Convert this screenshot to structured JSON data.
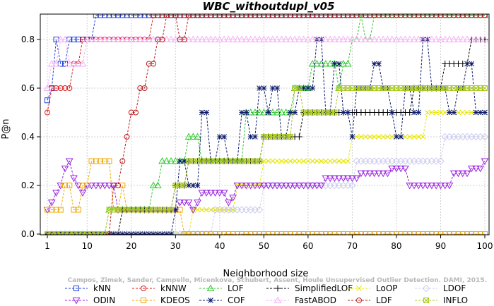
{
  "chart_data": {
    "type": "line",
    "title": "WBC_withoutdupl_v05",
    "xlabel": "Neighborhood size",
    "ylabel": "P@n",
    "xlim": [
      1,
      100
    ],
    "ylim": [
      0.0,
      0.9
    ],
    "xticks": [
      1,
      10,
      20,
      30,
      40,
      50,
      60,
      70,
      80,
      90,
      100
    ],
    "yticks": [
      0.0,
      0.2,
      0.4,
      0.6,
      0.8
    ],
    "ytick_labels": [
      "0.0",
      "0.2",
      "0.4",
      "0.6",
      "0.8"
    ],
    "grid": true,
    "legend_position": "bottom",
    "credit": "Campos, Zimek, Sander, Campello, Micenkova, Schubert, Assent, Houle  Unsupervised Outlier Detection. DAMI, 2015.",
    "series": [
      {
        "name": "kNN",
        "color": "#1f3fe0",
        "marker": "square",
        "points": [
          [
            1,
            0.55
          ],
          [
            2,
            0.6
          ],
          [
            3,
            0.8
          ],
          [
            4,
            0.7
          ],
          [
            5,
            0.7
          ],
          [
            6,
            0.8
          ],
          [
            8,
            0.8
          ],
          [
            11,
            0.8
          ],
          [
            12,
            0.9
          ],
          [
            100,
            0.9
          ]
        ]
      },
      {
        "name": "kNNW",
        "color": "#d81f1f",
        "marker": "circle",
        "points": [
          [
            1,
            0.5
          ],
          [
            2,
            0.6
          ],
          [
            3,
            0.6
          ],
          [
            6,
            0.6
          ],
          [
            7,
            0.7
          ],
          [
            8,
            0.7
          ],
          [
            9,
            0.8
          ],
          [
            24,
            0.8
          ],
          [
            25,
            0.9
          ],
          [
            100,
            0.9
          ]
        ]
      },
      {
        "name": "LOF",
        "color": "#2ec82e",
        "marker": "triangle-up",
        "points": [
          [
            1,
            0.0
          ],
          [
            14,
            0.0
          ],
          [
            15,
            0.1
          ],
          [
            24,
            0.1
          ],
          [
            25,
            0.2
          ],
          [
            27,
            0.3
          ],
          [
            32,
            0.3
          ],
          [
            33,
            0.4
          ],
          [
            35,
            0.4
          ],
          [
            36,
            0.3
          ],
          [
            44,
            0.3
          ],
          [
            46,
            0.5
          ],
          [
            56,
            0.5
          ],
          [
            57,
            0.6
          ],
          [
            60,
            0.6
          ],
          [
            61,
            0.7
          ],
          [
            65,
            0.7
          ],
          [
            67,
            0.6
          ],
          [
            68,
            0.7
          ],
          [
            70,
            0.8
          ],
          [
            72,
            0.9
          ],
          [
            73,
            0.8
          ],
          [
            75,
            0.9
          ],
          [
            100,
            0.9
          ]
        ]
      },
      {
        "name": "SimplifiedLOF",
        "color": "#000000",
        "marker": "plus",
        "points": [
          [
            1,
            0.0
          ],
          [
            17,
            0.0
          ],
          [
            18,
            0.1
          ],
          [
            29,
            0.1
          ],
          [
            30,
            0.2
          ],
          [
            32,
            0.2
          ],
          [
            33,
            0.3
          ],
          [
            49,
            0.3
          ],
          [
            50,
            0.4
          ],
          [
            58,
            0.4
          ],
          [
            59,
            0.5
          ],
          [
            83,
            0.5
          ],
          [
            84,
            0.6
          ],
          [
            90,
            0.6
          ],
          [
            91,
            0.7
          ],
          [
            96,
            0.7
          ],
          [
            97,
            0.8
          ],
          [
            100,
            0.8
          ]
        ]
      },
      {
        "name": "LoOP",
        "color": "#e6e600",
        "marker": "x",
        "points": [
          [
            1,
            0.0
          ],
          [
            33,
            0.0
          ],
          [
            34,
            0.1
          ],
          [
            43,
            0.1
          ],
          [
            44,
            0.2
          ],
          [
            49,
            0.2
          ],
          [
            50,
            0.3
          ],
          [
            69,
            0.3
          ],
          [
            70,
            0.4
          ],
          [
            86,
            0.4
          ],
          [
            87,
            0.5
          ],
          [
            100,
            0.5
          ]
        ]
      },
      {
        "name": "LDOF",
        "color": "#ccccf0",
        "marker": "diamond",
        "points": [
          [
            1,
            0.0
          ],
          [
            38,
            0.0
          ],
          [
            39,
            0.1
          ],
          [
            49,
            0.1
          ],
          [
            50,
            0.2
          ],
          [
            70,
            0.2
          ],
          [
            71,
            0.3
          ],
          [
            90,
            0.3
          ],
          [
            91,
            0.4
          ],
          [
            100,
            0.4
          ]
        ]
      },
      {
        "name": "ODIN",
        "color": "#9a1fe0",
        "marker": "triangle-down",
        "points": [
          [
            1,
            0.1
          ],
          [
            2,
            0.13
          ],
          [
            3,
            0.17
          ],
          [
            4,
            0.2
          ],
          [
            5,
            0.27
          ],
          [
            6,
            0.3
          ],
          [
            7,
            0.23
          ],
          [
            8,
            0.2
          ],
          [
            9,
            0.17
          ],
          [
            10,
            0.2
          ],
          [
            16,
            0.2
          ],
          [
            17,
            0.1
          ],
          [
            30,
            0.1
          ],
          [
            31,
            0.13
          ],
          [
            33,
            0.13
          ],
          [
            34,
            0.1
          ],
          [
            35,
            0.13
          ],
          [
            36,
            0.17
          ],
          [
            40,
            0.17
          ],
          [
            42,
            0.13
          ],
          [
            43,
            0.15
          ],
          [
            44,
            0.2
          ],
          [
            55,
            0.2
          ],
          [
            60,
            0.2
          ],
          [
            64,
            0.23
          ],
          [
            70,
            0.23
          ],
          [
            72,
            0.25
          ],
          [
            75,
            0.25
          ],
          [
            79,
            0.27
          ],
          [
            82,
            0.27
          ],
          [
            83,
            0.2
          ],
          [
            92,
            0.2
          ],
          [
            93,
            0.25
          ],
          [
            97,
            0.27
          ],
          [
            99,
            0.27
          ],
          [
            100,
            0.3
          ]
        ]
      },
      {
        "name": "KDEOS",
        "color": "#f0a800",
        "marker": "square",
        "points": [
          [
            1,
            0.1
          ],
          [
            4,
            0.1
          ],
          [
            5,
            0.2
          ],
          [
            7,
            0.1
          ],
          [
            9,
            0.2
          ],
          [
            10,
            0.2
          ],
          [
            11,
            0.3
          ],
          [
            14,
            0.3
          ],
          [
            15,
            0.3
          ],
          [
            16,
            0.1
          ],
          [
            18,
            0.2
          ],
          [
            19,
            0.1
          ],
          [
            31,
            0.1
          ],
          [
            32,
            0.0
          ],
          [
            100,
            0.0
          ]
        ]
      },
      {
        "name": "COF",
        "color": "#0c1a6a",
        "marker": "star",
        "points": [
          [
            1,
            0.0
          ],
          [
            29,
            0.0
          ],
          [
            30,
            0.1
          ],
          [
            31,
            0.3
          ],
          [
            33,
            0.2
          ],
          [
            35,
            0.2
          ],
          [
            36,
            0.5
          ],
          [
            38,
            0.3
          ],
          [
            40,
            0.4
          ],
          [
            42,
            0.3
          ],
          [
            44,
            0.3
          ],
          [
            45,
            0.5
          ],
          [
            47,
            0.4
          ],
          [
            49,
            0.6
          ],
          [
            51,
            0.5
          ],
          [
            52,
            0.6
          ],
          [
            54,
            0.4
          ],
          [
            56,
            0.5
          ],
          [
            58,
            0.6
          ],
          [
            60,
            0.6
          ],
          [
            62,
            0.8
          ],
          [
            64,
            0.5
          ],
          [
            66,
            0.7
          ],
          [
            68,
            0.5
          ],
          [
            70,
            0.4
          ],
          [
            71,
            0.6
          ],
          [
            73,
            0.6
          ],
          [
            75,
            0.7
          ],
          [
            77,
            0.6
          ],
          [
            79,
            0.5
          ],
          [
            80,
            0.4
          ],
          [
            82,
            0.6
          ],
          [
            84,
            0.5
          ],
          [
            86,
            0.8
          ],
          [
            88,
            0.6
          ],
          [
            90,
            0.6
          ],
          [
            92,
            0.5
          ],
          [
            94,
            0.6
          ],
          [
            96,
            0.7
          ],
          [
            98,
            0.5
          ],
          [
            100,
            0.5
          ]
        ]
      },
      {
        "name": "FastABOD",
        "color": "#f5b0f5",
        "marker": "triangle-up",
        "points": [
          [
            1,
            0.6
          ],
          [
            2,
            0.7
          ],
          [
            4,
            0.8
          ],
          [
            6,
            0.7
          ],
          [
            9,
            0.7
          ],
          [
            10,
            0.8
          ],
          [
            25,
            0.8
          ],
          [
            27,
            0.8
          ],
          [
            100,
            0.8
          ]
        ]
      },
      {
        "name": "LDF",
        "color": "#b81f1f",
        "marker": "circle",
        "points": [
          [
            1,
            0.0
          ],
          [
            15,
            0.0
          ],
          [
            16,
            0.2
          ],
          [
            18,
            0.3
          ],
          [
            19,
            0.4
          ],
          [
            20,
            0.5
          ],
          [
            22,
            0.6
          ],
          [
            24,
            0.7
          ],
          [
            26,
            0.8
          ],
          [
            28,
            0.9
          ],
          [
            30,
            0.9
          ],
          [
            31,
            0.8
          ],
          [
            33,
            0.9
          ],
          [
            100,
            0.9
          ]
        ]
      },
      {
        "name": "INFLO",
        "color": "#a8c81f",
        "marker": "box-x",
        "points": [
          [
            1,
            0.0
          ],
          [
            14,
            0.0
          ],
          [
            15,
            0.1
          ],
          [
            29,
            0.1
          ],
          [
            30,
            0.2
          ],
          [
            32,
            0.2
          ],
          [
            33,
            0.3
          ],
          [
            49,
            0.3
          ],
          [
            50,
            0.4
          ],
          [
            55,
            0.4
          ],
          [
            57,
            0.6
          ],
          [
            58,
            0.6
          ],
          [
            59,
            0.5
          ],
          [
            66,
            0.5
          ],
          [
            67,
            0.6
          ],
          [
            100,
            0.6
          ]
        ]
      }
    ]
  }
}
